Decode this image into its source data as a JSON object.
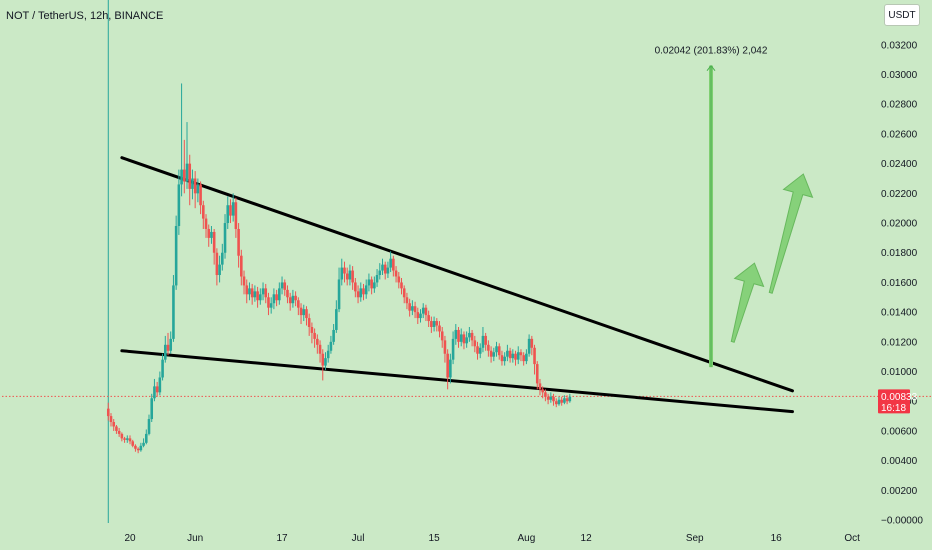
{
  "header": {
    "symbol": "NOT / TetherUS, 12h, BINANCE",
    "currency": "USDT"
  },
  "colors": {
    "background": "#cbe9c6",
    "up": "#26a69a",
    "down": "#ef5350",
    "projection": "#7fcf72",
    "trendline": "#000000",
    "price_tag": "#f23645"
  },
  "chart_data": {
    "type": "candlestick",
    "symbol": "NOT / TetherUS",
    "timeframe": "12h",
    "exchange": "BINANCE",
    "ylim": [
      -0.0002,
      0.033
    ],
    "y_ticks": [
      "0.03200",
      "0.03000",
      "0.02800",
      "0.02600",
      "0.02400",
      "0.02200",
      "0.02000",
      "0.01800",
      "0.01600",
      "0.01400",
      "0.01200",
      "0.01000",
      "0.00800",
      "0.00600",
      "0.00400",
      "0.00200",
      "−0.00000"
    ],
    "y_tick_values": [
      0.032,
      0.03,
      0.028,
      0.026,
      0.024,
      0.022,
      0.02,
      0.018,
      0.016,
      0.014,
      0.012,
      0.01,
      0.008,
      0.006,
      0.004,
      0.002,
      0.0
    ],
    "x_ticks": [
      {
        "label": "20",
        "day": 0
      },
      {
        "label": "Jun",
        "day": 12
      },
      {
        "label": "17",
        "day": 28
      },
      {
        "label": "Jul",
        "day": 42
      },
      {
        "label": "15",
        "day": 56
      },
      {
        "label": "Aug",
        "day": 73
      },
      {
        "label": "12",
        "day": 84
      },
      {
        "label": "Sep",
        "day": 104
      },
      {
        "label": "16",
        "day": 119
      },
      {
        "label": "Oct",
        "day": 133
      }
    ],
    "last_price": {
      "price": "0.00833",
      "countdown": "16:18",
      "value": 0.00833
    },
    "projection_label": "0.02042 (201.83%) 2,042",
    "projection": {
      "from_day": 107,
      "from_value": 0.0103,
      "to_value": 0.0306
    },
    "trendlines": [
      {
        "name": "upper",
        "from": [
          -1.5,
          0.0244
        ],
        "to": [
          122,
          0.0087
        ]
      },
      {
        "name": "lower",
        "from": [
          -1.5,
          0.0114
        ],
        "to": [
          122,
          0.0073
        ]
      }
    ],
    "arrows": [
      {
        "from": [
          111,
          0.012
        ],
        "to": [
          115,
          0.0173
        ]
      },
      {
        "from": [
          118,
          0.0153
        ],
        "to": [
          124,
          0.0233
        ]
      }
    ],
    "candles": [
      [
        -4.0,
        0.0075,
        0.007,
        0.0079,
        0.0067
      ],
      [
        -3.5,
        0.007,
        0.0066,
        0.0072,
        0.0063
      ],
      [
        -3.0,
        0.0066,
        0.0063,
        0.0068,
        0.006
      ],
      [
        -2.5,
        0.0063,
        0.006,
        0.0064,
        0.0058
      ],
      [
        -2.0,
        0.006,
        0.0058,
        0.0062,
        0.0056
      ],
      [
        -1.5,
        0.0058,
        0.0055,
        0.0059,
        0.0053
      ],
      [
        -1.0,
        0.0055,
        0.0054,
        0.0056,
        0.0052
      ],
      [
        -0.5,
        0.0054,
        0.0055,
        0.0057,
        0.0052
      ],
      [
        0.0,
        0.0055,
        0.0053,
        0.0057,
        0.0051
      ],
      [
        0.5,
        0.0053,
        0.005,
        0.0054,
        0.0049
      ],
      [
        1.0,
        0.005,
        0.0048,
        0.0051,
        0.0046
      ],
      [
        1.5,
        0.0048,
        0.0047,
        0.0049,
        0.0045
      ],
      [
        2.0,
        0.0047,
        0.005,
        0.0052,
        0.0046
      ],
      [
        2.5,
        0.005,
        0.0052,
        0.0055,
        0.0049
      ],
      [
        3.0,
        0.0052,
        0.0058,
        0.0061,
        0.0051
      ],
      [
        3.5,
        0.0058,
        0.0068,
        0.0071,
        0.0057
      ],
      [
        4.0,
        0.0068,
        0.0082,
        0.0085,
        0.0066
      ],
      [
        4.5,
        0.0082,
        0.009,
        0.0095,
        0.008
      ],
      [
        5.0,
        0.009,
        0.0086,
        0.0093,
        0.0083
      ],
      [
        5.5,
        0.0086,
        0.0096,
        0.01,
        0.0084
      ],
      [
        6.0,
        0.0096,
        0.0108,
        0.0112,
        0.0094
      ],
      [
        6.5,
        0.0108,
        0.0118,
        0.0124,
        0.0106
      ],
      [
        7.0,
        0.0118,
        0.0114,
        0.0126,
        0.0111
      ],
      [
        7.5,
        0.0114,
        0.0122,
        0.0127,
        0.0112
      ],
      [
        8.0,
        0.0122,
        0.0158,
        0.0165,
        0.012
      ],
      [
        8.5,
        0.0158,
        0.0198,
        0.0205,
        0.0155
      ],
      [
        9.0,
        0.0198,
        0.0226,
        0.0236,
        0.0192
      ],
      [
        9.5,
        0.0226,
        0.0236,
        0.0294,
        0.0218
      ],
      [
        10.0,
        0.0236,
        0.0228,
        0.0256,
        0.022
      ],
      [
        10.5,
        0.0228,
        0.024,
        0.0268,
        0.0223
      ],
      [
        11.0,
        0.024,
        0.0223,
        0.0246,
        0.0212
      ],
      [
        11.5,
        0.0223,
        0.023,
        0.0236,
        0.0216
      ],
      [
        12.0,
        0.023,
        0.022,
        0.0235,
        0.021
      ],
      [
        12.5,
        0.022,
        0.0226,
        0.023,
        0.0214
      ],
      [
        13.0,
        0.0226,
        0.0212,
        0.0228,
        0.0206
      ],
      [
        13.5,
        0.0212,
        0.0203,
        0.0215,
        0.0196
      ],
      [
        14.0,
        0.0203,
        0.0196,
        0.0206,
        0.019
      ],
      [
        14.5,
        0.0196,
        0.019,
        0.0199,
        0.0184
      ],
      [
        15.0,
        0.019,
        0.0194,
        0.0198,
        0.0186
      ],
      [
        15.5,
        0.0194,
        0.018,
        0.0196,
        0.0172
      ],
      [
        16.0,
        0.018,
        0.0165,
        0.0183,
        0.0158
      ],
      [
        16.5,
        0.0165,
        0.0172,
        0.0178,
        0.016
      ],
      [
        17.0,
        0.0172,
        0.018,
        0.0186,
        0.0168
      ],
      [
        17.5,
        0.018,
        0.02,
        0.0206,
        0.0176
      ],
      [
        18.0,
        0.02,
        0.0212,
        0.0218,
        0.0196
      ],
      [
        18.5,
        0.0212,
        0.0205,
        0.0216,
        0.02
      ],
      [
        19.0,
        0.0205,
        0.0214,
        0.022,
        0.0201
      ],
      [
        19.5,
        0.0214,
        0.0196,
        0.0217,
        0.019
      ],
      [
        20.0,
        0.0196,
        0.0178,
        0.02,
        0.017
      ],
      [
        20.5,
        0.0178,
        0.0164,
        0.0182,
        0.0158
      ],
      [
        21.0,
        0.0164,
        0.0158,
        0.0168,
        0.0152
      ],
      [
        21.5,
        0.0158,
        0.0152,
        0.0162,
        0.0146
      ],
      [
        22.0,
        0.0152,
        0.0156,
        0.016,
        0.0148
      ],
      [
        22.5,
        0.0156,
        0.015,
        0.0159,
        0.0145
      ],
      [
        23.0,
        0.015,
        0.0154,
        0.0158,
        0.0147
      ],
      [
        23.5,
        0.0154,
        0.0148,
        0.0157,
        0.0143
      ],
      [
        24.0,
        0.0148,
        0.0152,
        0.0156,
        0.0145
      ],
      [
        24.5,
        0.0152,
        0.0156,
        0.016,
        0.0148
      ],
      [
        25.0,
        0.0156,
        0.015,
        0.0159,
        0.0146
      ],
      [
        25.5,
        0.015,
        0.0143,
        0.0153,
        0.0138
      ],
      [
        26.0,
        0.0143,
        0.0146,
        0.015,
        0.0139
      ],
      [
        26.5,
        0.0146,
        0.0152,
        0.0156,
        0.0142
      ],
      [
        27.0,
        0.0152,
        0.0148,
        0.0155,
        0.0144
      ],
      [
        27.5,
        0.0148,
        0.0156,
        0.016,
        0.0145
      ],
      [
        28.0,
        0.0156,
        0.016,
        0.0164,
        0.0152
      ],
      [
        28.5,
        0.016,
        0.0155,
        0.0162,
        0.0151
      ],
      [
        29.0,
        0.0155,
        0.015,
        0.0158,
        0.0146
      ],
      [
        29.5,
        0.015,
        0.0146,
        0.0153,
        0.0141
      ],
      [
        30.0,
        0.0146,
        0.0151,
        0.0155,
        0.0143
      ],
      [
        30.5,
        0.0151,
        0.0148,
        0.0154,
        0.0144
      ],
      [
        31.0,
        0.0148,
        0.0143,
        0.015,
        0.0138
      ],
      [
        31.5,
        0.0143,
        0.0138,
        0.0146,
        0.0132
      ],
      [
        32.0,
        0.0138,
        0.0142,
        0.0145,
        0.0134
      ],
      [
        32.5,
        0.0142,
        0.0136,
        0.0144,
        0.0131
      ],
      [
        33.0,
        0.0136,
        0.013,
        0.0139,
        0.0124
      ],
      [
        33.5,
        0.013,
        0.0126,
        0.0133,
        0.0119
      ],
      [
        34.0,
        0.0126,
        0.0122,
        0.0129,
        0.0116
      ],
      [
        34.5,
        0.0122,
        0.0118,
        0.0125,
        0.0112
      ],
      [
        35.0,
        0.0118,
        0.0112,
        0.0121,
        0.0106
      ],
      [
        35.5,
        0.0112,
        0.0104,
        0.0115,
        0.0094
      ],
      [
        36.0,
        0.0104,
        0.0109,
        0.0113,
        0.0101
      ],
      [
        36.5,
        0.0109,
        0.0114,
        0.0118,
        0.0106
      ],
      [
        37.0,
        0.0114,
        0.012,
        0.0124,
        0.0112
      ],
      [
        37.5,
        0.012,
        0.0128,
        0.0132,
        0.0118
      ],
      [
        38.0,
        0.0128,
        0.0142,
        0.0148,
        0.0126
      ],
      [
        38.5,
        0.0142,
        0.0162,
        0.017,
        0.014
      ],
      [
        39.0,
        0.0162,
        0.017,
        0.0176,
        0.0158
      ],
      [
        39.5,
        0.017,
        0.0166,
        0.0174,
        0.016
      ],
      [
        40.0,
        0.0166,
        0.0162,
        0.017,
        0.0158
      ],
      [
        40.5,
        0.0162,
        0.0168,
        0.0172,
        0.0158
      ],
      [
        41.0,
        0.0168,
        0.016,
        0.0171,
        0.0155
      ],
      [
        41.5,
        0.016,
        0.0154,
        0.0163,
        0.015
      ],
      [
        42.0,
        0.0154,
        0.015,
        0.0158,
        0.0146
      ],
      [
        42.5,
        0.015,
        0.0156,
        0.016,
        0.0147
      ],
      [
        43.0,
        0.0156,
        0.0152,
        0.0159,
        0.0148
      ],
      [
        43.5,
        0.0152,
        0.0158,
        0.0162,
        0.0149
      ],
      [
        44.0,
        0.0158,
        0.0162,
        0.0166,
        0.0154
      ],
      [
        44.5,
        0.0162,
        0.0156,
        0.0164,
        0.0152
      ],
      [
        45.0,
        0.0156,
        0.016,
        0.0164,
        0.0153
      ],
      [
        45.5,
        0.016,
        0.0165,
        0.0169,
        0.0157
      ],
      [
        46.0,
        0.0165,
        0.0168,
        0.0173,
        0.0162
      ],
      [
        46.5,
        0.0168,
        0.0172,
        0.0176,
        0.0165
      ],
      [
        47.0,
        0.0172,
        0.0166,
        0.0174,
        0.0162
      ],
      [
        47.5,
        0.0166,
        0.017,
        0.0174,
        0.0163
      ],
      [
        48.0,
        0.017,
        0.0176,
        0.0181,
        0.0167
      ],
      [
        48.5,
        0.0176,
        0.0168,
        0.0178,
        0.0164
      ],
      [
        49.0,
        0.0168,
        0.0164,
        0.0171,
        0.016
      ],
      [
        49.5,
        0.0164,
        0.016,
        0.0167,
        0.0156
      ],
      [
        50.0,
        0.016,
        0.0156,
        0.0163,
        0.0152
      ],
      [
        50.5,
        0.0156,
        0.015,
        0.0158,
        0.0146
      ],
      [
        51.0,
        0.015,
        0.0146,
        0.0153,
        0.0142
      ],
      [
        51.5,
        0.0146,
        0.0141,
        0.0149,
        0.0137
      ],
      [
        52.0,
        0.0141,
        0.0144,
        0.0148,
        0.0138
      ],
      [
        52.5,
        0.0144,
        0.014,
        0.0147,
        0.0136
      ],
      [
        53.0,
        0.014,
        0.0136,
        0.0143,
        0.0132
      ],
      [
        53.5,
        0.0136,
        0.0139,
        0.0142,
        0.0133
      ],
      [
        54.0,
        0.0139,
        0.0143,
        0.0146,
        0.0136
      ],
      [
        54.5,
        0.0143,
        0.0138,
        0.0145,
        0.0134
      ],
      [
        55.0,
        0.0138,
        0.0134,
        0.0141,
        0.013
      ],
      [
        55.5,
        0.0134,
        0.013,
        0.0137,
        0.0126
      ],
      [
        56.0,
        0.013,
        0.0134,
        0.0137,
        0.0127
      ],
      [
        56.5,
        0.0134,
        0.0131,
        0.0136,
        0.0127
      ],
      [
        57.0,
        0.0131,
        0.0127,
        0.0134,
        0.0123
      ],
      [
        57.5,
        0.0127,
        0.0121,
        0.013,
        0.0116
      ],
      [
        58.0,
        0.0121,
        0.0112,
        0.0124,
        0.0106
      ],
      [
        58.5,
        0.0112,
        0.0096,
        0.0115,
        0.0088
      ],
      [
        59.0,
        0.0096,
        0.0108,
        0.0112,
        0.0092
      ],
      [
        59.5,
        0.0108,
        0.0122,
        0.0127,
        0.0105
      ],
      [
        60.0,
        0.0122,
        0.0128,
        0.0132,
        0.0118
      ],
      [
        60.5,
        0.0128,
        0.012,
        0.013,
        0.0116
      ],
      [
        61.0,
        0.012,
        0.0125,
        0.0129,
        0.0117
      ],
      [
        61.5,
        0.0125,
        0.0119,
        0.0127,
        0.0115
      ],
      [
        62.0,
        0.0119,
        0.0123,
        0.0127,
        0.0116
      ],
      [
        62.5,
        0.0123,
        0.0126,
        0.013,
        0.012
      ],
      [
        63.0,
        0.0126,
        0.0121,
        0.0128,
        0.0117
      ],
      [
        63.5,
        0.0121,
        0.0117,
        0.0124,
        0.0113
      ],
      [
        64.0,
        0.0117,
        0.0112,
        0.012,
        0.0108
      ],
      [
        64.5,
        0.0112,
        0.0116,
        0.0119,
        0.0109
      ],
      [
        65.0,
        0.0116,
        0.0124,
        0.013,
        0.0113
      ],
      [
        65.5,
        0.0124,
        0.0118,
        0.0126,
        0.0114
      ],
      [
        66.0,
        0.0118,
        0.0114,
        0.0121,
        0.011
      ],
      [
        66.5,
        0.0114,
        0.011,
        0.0117,
        0.0106
      ],
      [
        67.0,
        0.011,
        0.0113,
        0.0116,
        0.0107
      ],
      [
        67.5,
        0.0113,
        0.0117,
        0.012,
        0.011
      ],
      [
        68.0,
        0.0117,
        0.0111,
        0.0119,
        0.0108
      ],
      [
        68.5,
        0.0111,
        0.0107,
        0.0114,
        0.0104
      ],
      [
        69.0,
        0.0107,
        0.011,
        0.0113,
        0.0104
      ],
      [
        69.5,
        0.011,
        0.0114,
        0.0118,
        0.0107
      ],
      [
        70.0,
        0.0114,
        0.0109,
        0.0116,
        0.0106
      ],
      [
        70.5,
        0.0109,
        0.0112,
        0.0115,
        0.0106
      ],
      [
        71.0,
        0.0112,
        0.0108,
        0.0114,
        0.0104
      ],
      [
        71.5,
        0.0108,
        0.0113,
        0.0117,
        0.0105
      ],
      [
        72.0,
        0.0113,
        0.0111,
        0.0115,
        0.0107
      ],
      [
        72.5,
        0.0111,
        0.0107,
        0.0113,
        0.0104
      ],
      [
        73.0,
        0.0107,
        0.0112,
        0.0115,
        0.0105
      ],
      [
        73.5,
        0.0112,
        0.0122,
        0.0125,
        0.011
      ],
      [
        74.0,
        0.0122,
        0.0116,
        0.0124,
        0.0111
      ],
      [
        74.5,
        0.0116,
        0.0105,
        0.0118,
        0.0098
      ],
      [
        75.0,
        0.0105,
        0.0092,
        0.0107,
        0.0088
      ],
      [
        75.5,
        0.0092,
        0.0088,
        0.0095,
        0.0084
      ],
      [
        76.0,
        0.0088,
        0.0086,
        0.009,
        0.0082
      ],
      [
        76.5,
        0.0086,
        0.0083,
        0.0088,
        0.008
      ],
      [
        77.0,
        0.0083,
        0.0081,
        0.0085,
        0.0078
      ],
      [
        77.5,
        0.0081,
        0.0083,
        0.0086,
        0.0079
      ],
      [
        78.0,
        0.0083,
        0.008,
        0.0085,
        0.0077
      ],
      [
        78.5,
        0.008,
        0.0078,
        0.0082,
        0.0076
      ],
      [
        79.0,
        0.0078,
        0.0081,
        0.0083,
        0.0077
      ],
      [
        79.5,
        0.0081,
        0.0079,
        0.0083,
        0.0077
      ],
      [
        80.0,
        0.0079,
        0.0082,
        0.0084,
        0.0078
      ],
      [
        80.5,
        0.0082,
        0.008,
        0.0084,
        0.0078
      ],
      [
        81.0,
        0.008,
        0.0083,
        0.0085,
        0.0079
      ]
    ]
  }
}
